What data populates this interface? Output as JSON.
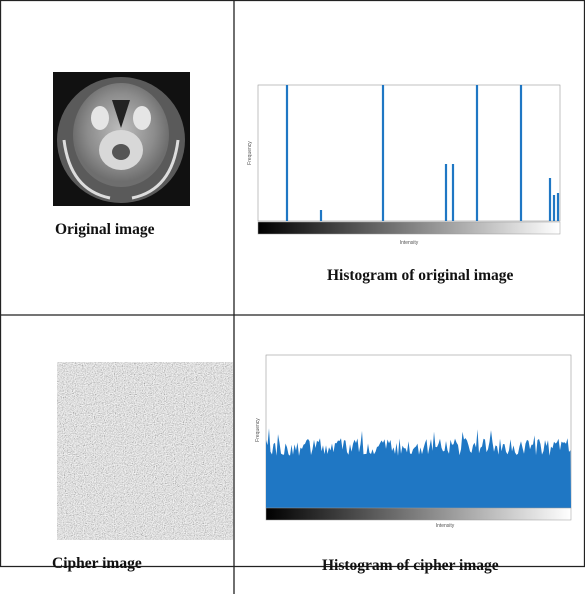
{
  "cells": [
    {
      "caption": "Original image"
    },
    {
      "caption": "Histogram of original image",
      "x_label": "Intensity",
      "y_label": "Frequency"
    },
    {
      "caption": "Cipher image"
    },
    {
      "caption": "Histogram of cipher image",
      "x_label": "Intensity",
      "y_label": "Frequency"
    }
  ]
}
